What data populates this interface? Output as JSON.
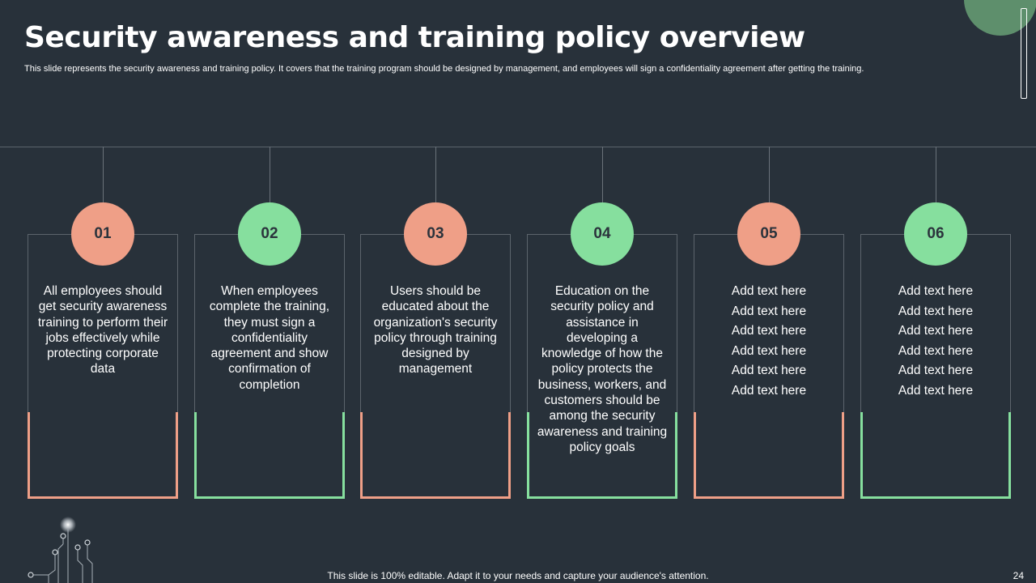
{
  "title": "Security awareness and training policy overview",
  "subtitle": "This slide represents the security awareness and training policy. It covers that the training program should be designed by management, and employees will sign a confidentiality agreement after getting the training.",
  "colors": {
    "background": "#28313a",
    "salmon": "#ef9f87",
    "green": "#86df9e"
  },
  "cards": [
    {
      "number": "01",
      "text": "All employees should get security awareness training to perform their jobs effectively while protecting corporate data"
    },
    {
      "number": "02",
      "text": "When employees complete the training, they must sign a confidentiality agreement and show confirmation of completion"
    },
    {
      "number": "03",
      "text": "Users should be educated about the organization's security policy through training designed by management"
    },
    {
      "number": "04",
      "text": "Education on the security policy and assistance in developing a knowledge of how the policy protects the business, workers, and customers should be among the security awareness and training policy goals"
    },
    {
      "number": "05",
      "lines": [
        "Add text here",
        "Add text here",
        "Add text here",
        "Add text here",
        "Add text here",
        "Add text here"
      ]
    },
    {
      "number": "06",
      "lines": [
        "Add text here",
        "Add text here",
        "Add text here",
        "Add text here",
        "Add text here",
        "Add text here"
      ]
    }
  ],
  "footer": "This slide is 100% editable. Adapt it to your needs and capture your audience's attention.",
  "page_number": "24"
}
